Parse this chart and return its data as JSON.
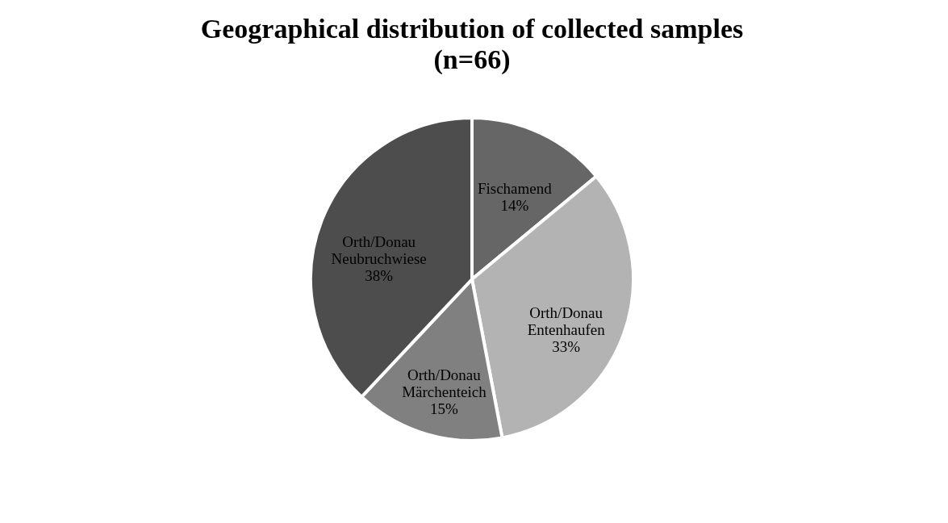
{
  "chart_data": {
    "type": "pie",
    "title": "Geographical distribution of collected samples (n=66)",
    "categories": [
      "Fischamend",
      "Orth/Donau Entenhaufen",
      "Orth/Donau Märchenteich",
      "Orth/Donau Neubruchwiese"
    ],
    "values": [
      14,
      33,
      15,
      38
    ],
    "value_labels": [
      "14%",
      "33%",
      "15%",
      "38%"
    ],
    "colors": [
      "#666666",
      "#b3b3b3",
      "#808080",
      "#4d4d4d"
    ],
    "legend": false
  }
}
